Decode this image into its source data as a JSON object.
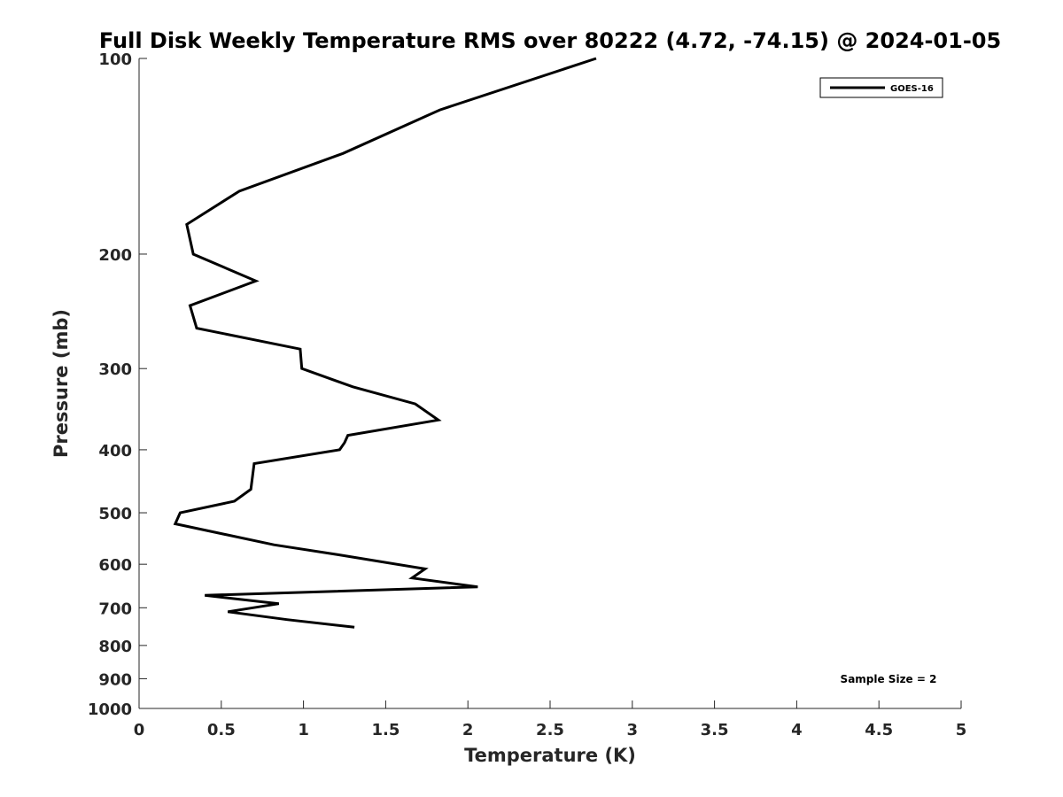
{
  "chart_data": {
    "type": "line",
    "title": "Full Disk Weekly Temperature RMS over 80222 (4.72, -74.15) @ 2024-01-05",
    "xlabel": "Temperature (K)",
    "ylabel": "Pressure (mb)",
    "xlim": [
      0,
      5
    ],
    "ylim": [
      100,
      1000
    ],
    "yscale": "log",
    "y_reversed": true,
    "grid": false,
    "legend_position": "top-right",
    "x_ticks": [
      "0",
      "0.5",
      "1",
      "1.5",
      "2",
      "2.5",
      "3",
      "3.5",
      "4",
      "4.5",
      "5"
    ],
    "y_ticks": [
      "100",
      "200",
      "300",
      "400",
      "500",
      "600",
      "700",
      "800",
      "900",
      "1000"
    ],
    "series": [
      {
        "name": "GOES-16",
        "color": "#000000",
        "x": [
          2.78,
          1.83,
          1.24,
          0.61,
          0.29,
          0.33,
          0.71,
          0.31,
          0.35,
          0.98,
          0.99,
          1.3,
          1.68,
          1.82,
          1.27,
          1.25,
          1.22,
          0.7,
          0.68,
          0.58,
          0.25,
          0.22,
          0.82,
          1.21,
          1.74,
          1.66,
          2.06,
          0.4,
          0.85,
          0.54,
          0.9,
          1.31
        ],
        "y": [
          100,
          120,
          140,
          160,
          180,
          200,
          220,
          240,
          260,
          280,
          300,
          320,
          340,
          360,
          380,
          390,
          400,
          420,
          460,
          480,
          500,
          520,
          560,
          580,
          610,
          630,
          650,
          670,
          690,
          710,
          730,
          750
        ]
      }
    ],
    "annotations": [
      "Sample Size = 2"
    ]
  }
}
